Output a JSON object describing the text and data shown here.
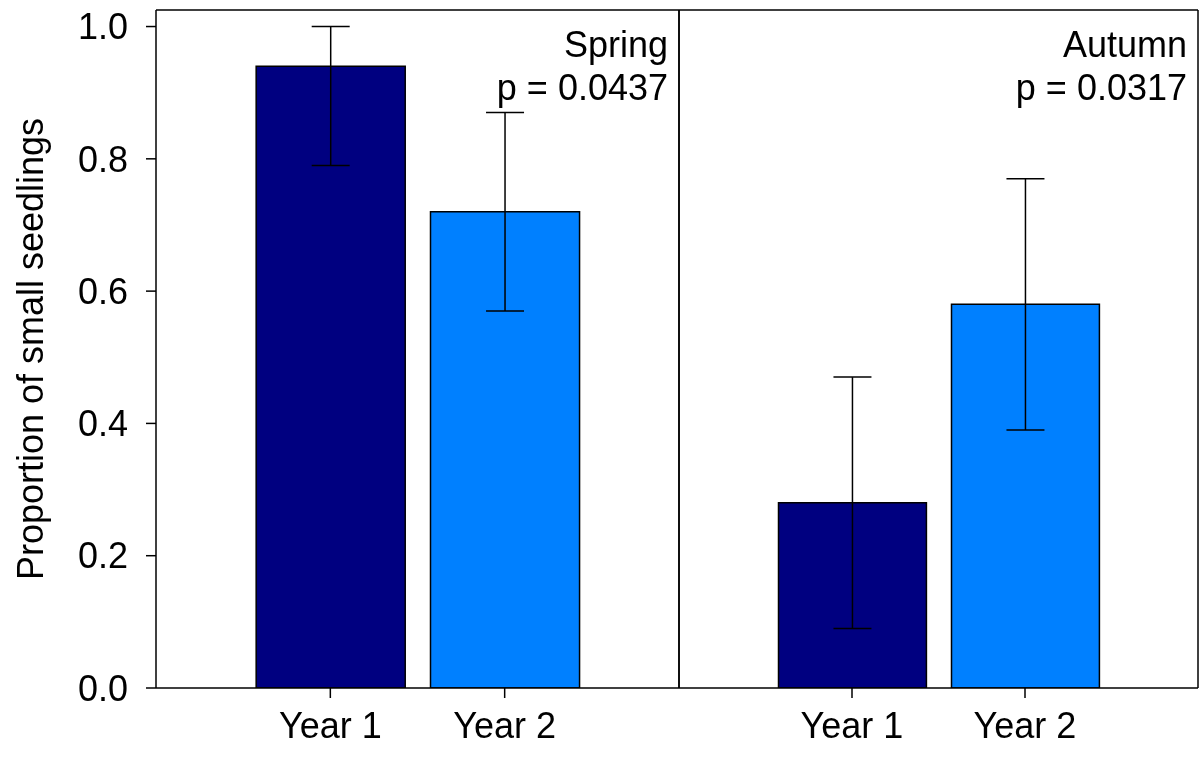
{
  "chart_data": [
    {
      "type": "bar",
      "ylabel": "Proportion of small seedlings",
      "annotations": [
        "Spring",
        "p = 0.0437"
      ],
      "categories": [
        "Year 1",
        "Year 2"
      ],
      "values": [
        0.94,
        0.72
      ],
      "colors": [
        "#000080",
        "#0080ff"
      ],
      "errors": [
        [
          0.79,
          1.0
        ],
        [
          0.57,
          0.87
        ]
      ],
      "ylim": [
        0,
        1.025
      ],
      "yticks": [
        {
          "value": 0,
          "label": "0.0"
        },
        0.2,
        0.4,
        0.6,
        0.8,
        {
          "value": 1,
          "label": "1.0"
        }
      ]
    },
    {
      "type": "bar",
      "annotations": [
        "Autumn",
        "p = 0.0317"
      ],
      "categories": [
        "Year 1",
        "Year 2"
      ],
      "values": [
        0.28,
        0.58
      ],
      "colors": [
        "#000080",
        "#0080ff"
      ],
      "errors": [
        [
          0.09,
          0.47
        ],
        [
          0.39,
          0.77
        ]
      ],
      "ylim": [
        0,
        1.025
      ],
      "tick_labels": "x"
    }
  ]
}
